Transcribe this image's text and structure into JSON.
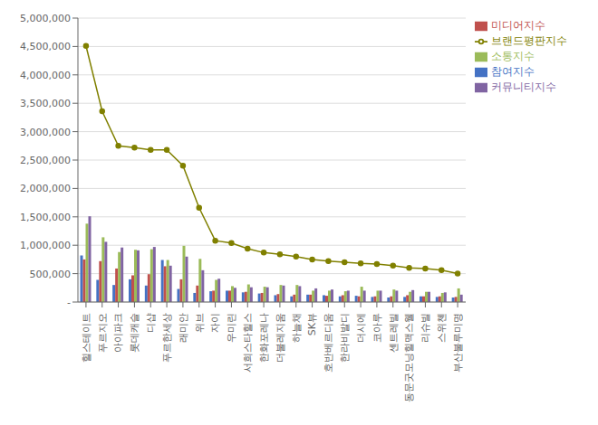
{
  "chart_data": {
    "type": "bar",
    "categories": [
      "힐스테이트",
      "푸르지오",
      "아이파크",
      "롯데캐슬",
      "디샵",
      "푸르한세상",
      "래미안",
      "위브",
      "자이",
      "우미린",
      "서희스타힐스",
      "한화포레나",
      "더불레지움",
      "하늘채",
      "SK뷰",
      "호반베르디움",
      "한라비발디",
      "더시에",
      "코아루",
      "센트레빌",
      "동문굿모닝힐맥스웰",
      "리슈빌",
      "스위첸",
      "부산불루미명"
    ],
    "series": [
      {
        "name": "참여지수",
        "type": "bar",
        "color": "#4472c4",
        "values": [
          820000,
          390000,
          300000,
          400000,
          290000,
          740000,
          230000,
          160000,
          190000,
          200000,
          170000,
          150000,
          120000,
          100000,
          130000,
          120000,
          100000,
          110000,
          90000,
          80000,
          90000,
          100000,
          90000,
          80000
        ]
      },
      {
        "name": "미디어지수",
        "type": "bar",
        "color": "#c0504d",
        "values": [
          750000,
          720000,
          590000,
          470000,
          490000,
          630000,
          400000,
          290000,
          200000,
          200000,
          180000,
          160000,
          140000,
          130000,
          130000,
          110000,
          120000,
          100000,
          100000,
          100000,
          120000,
          100000,
          100000,
          90000
        ]
      },
      {
        "name": "소통지수",
        "type": "bar",
        "color": "#9bbb59",
        "values": [
          1380000,
          1140000,
          880000,
          920000,
          930000,
          740000,
          990000,
          760000,
          390000,
          280000,
          310000,
          270000,
          300000,
          300000,
          200000,
          200000,
          190000,
          270000,
          200000,
          220000,
          180000,
          180000,
          160000,
          240000
        ]
      },
      {
        "name": "커뮤니티지수",
        "type": "bar",
        "color": "#8064a2",
        "values": [
          1510000,
          1060000,
          960000,
          910000,
          970000,
          640000,
          800000,
          560000,
          410000,
          250000,
          260000,
          260000,
          290000,
          280000,
          240000,
          220000,
          200000,
          200000,
          200000,
          200000,
          210000,
          180000,
          170000,
          130000
        ]
      },
      {
        "name": "브랜드평판지수",
        "type": "line",
        "color": "#808000",
        "marker": "circle",
        "values": [
          4510000,
          3360000,
          2750000,
          2720000,
          2680000,
          2680000,
          2400000,
          1660000,
          1080000,
          1040000,
          940000,
          870000,
          840000,
          800000,
          750000,
          720000,
          700000,
          680000,
          670000,
          640000,
          600000,
          590000,
          560000,
          500000
        ]
      }
    ],
    "ylim": [
      0,
      5000000
    ],
    "yticks": [
      {
        "value": 0,
        "label": "-"
      },
      {
        "value": 500000,
        "label": "500,000"
      },
      {
        "value": 1000000,
        "label": "1,000,000"
      },
      {
        "value": 1500000,
        "label": "1,500,000"
      },
      {
        "value": 2000000,
        "label": "2,000,000"
      },
      {
        "value": 2500000,
        "label": "2,500,000"
      },
      {
        "value": 3000000,
        "label": "3,000,000"
      },
      {
        "value": 3500000,
        "label": "3,500,000"
      },
      {
        "value": 4000000,
        "label": "4,000,000"
      },
      {
        "value": 4500000,
        "label": "4,500,000"
      },
      {
        "value": 5000000,
        "label": "5,000,000"
      }
    ],
    "grid": true,
    "legend": "upper right"
  }
}
